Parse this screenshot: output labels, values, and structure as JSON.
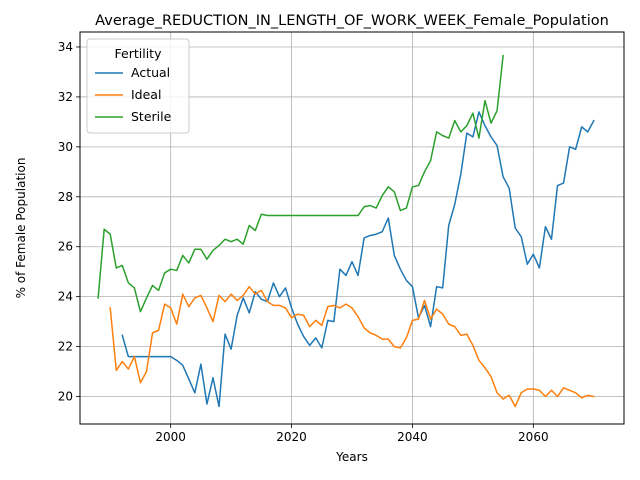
{
  "chart_data": {
    "type": "line",
    "title": "Average_REDUCTION_IN_LENGTH_OF_WORK_WEEK_Female_Population",
    "xlabel": "Years",
    "ylabel": "% of Female Population",
    "xlim": [
      1985,
      2075
    ],
    "ylim": [
      18.9,
      34.6
    ],
    "xticks": [
      2000,
      2020,
      2040,
      2060
    ],
    "yticks": [
      20,
      22,
      24,
      26,
      28,
      30,
      32,
      34
    ],
    "grid": true,
    "legend": {
      "title": "Fertility",
      "placement": "top-left"
    },
    "series": [
      {
        "name": "Actual",
        "color": "#1f77b4",
        "x": [
          1992,
          1993,
          1994,
          1995,
          1996,
          1997,
          1998,
          1999,
          2000,
          2001,
          2002,
          2003,
          2004,
          2005,
          2006,
          2007,
          2008,
          2009,
          2010,
          2011,
          2012,
          2013,
          2014,
          2015,
          2016,
          2017,
          2018,
          2019,
          2020,
          2021,
          2022,
          2023,
          2024,
          2025,
          2026,
          2027,
          2028,
          2029,
          2030,
          2031,
          2032,
          2033,
          2034,
          2035,
          2036,
          2037,
          2038,
          2039,
          2040,
          2041,
          2042,
          2043,
          2044,
          2045,
          2046,
          2047,
          2048,
          2049,
          2050,
          2051,
          2052,
          2053,
          2054,
          2055,
          2056,
          2057,
          2058,
          2059,
          2060,
          2061,
          2062,
          2063,
          2064,
          2065,
          2066,
          2067,
          2068,
          2069,
          2070
        ],
        "values": [
          22.45,
          21.6,
          21.6,
          21.6,
          21.6,
          21.6,
          21.6,
          21.6,
          21.6,
          21.45,
          21.25,
          20.7,
          20.15,
          21.3,
          19.7,
          20.75,
          19.6,
          22.5,
          21.9,
          23.25,
          23.95,
          23.35,
          24.2,
          23.9,
          23.8,
          24.55,
          24.0,
          24.35,
          23.55,
          22.9,
          22.4,
          22.05,
          22.35,
          21.95,
          23.05,
          23.0,
          25.1,
          24.85,
          25.4,
          24.85,
          26.35,
          26.45,
          26.5,
          26.6,
          27.15,
          25.65,
          25.1,
          24.65,
          24.4,
          23.15,
          23.65,
          22.8,
          24.4,
          24.35,
          26.85,
          27.7,
          28.9,
          30.55,
          30.4,
          31.4,
          30.85,
          30.4,
          30.05,
          28.8,
          28.35,
          26.75,
          26.4,
          25.3,
          25.7,
          25.15,
          26.8,
          26.3,
          28.45,
          28.55,
          30.0,
          29.9,
          30.8,
          30.6,
          31.05
        ]
      },
      {
        "name": "Ideal",
        "color": "#ff7f0e",
        "x": [
          1990,
          1991,
          1992,
          1993,
          1994,
          1995,
          1996,
          1997,
          1998,
          1999,
          2000,
          2001,
          2002,
          2003,
          2004,
          2005,
          2006,
          2007,
          2008,
          2009,
          2010,
          2011,
          2012,
          2013,
          2014,
          2015,
          2016,
          2017,
          2018,
          2019,
          2020,
          2021,
          2022,
          2023,
          2024,
          2025,
          2026,
          2027,
          2028,
          2029,
          2030,
          2031,
          2032,
          2033,
          2034,
          2035,
          2036,
          2037,
          2038,
          2039,
          2040,
          2041,
          2042,
          2043,
          2044,
          2045,
          2046,
          2047,
          2048,
          2049,
          2050,
          2051,
          2052,
          2053,
          2054,
          2055,
          2056,
          2057,
          2058,
          2059,
          2060,
          2061,
          2062,
          2063,
          2064,
          2065,
          2066,
          2067,
          2068,
          2069,
          2070
        ],
        "values": [
          23.55,
          21.05,
          21.4,
          21.1,
          21.6,
          20.55,
          21.0,
          22.55,
          22.65,
          23.7,
          23.55,
          22.9,
          24.1,
          23.6,
          23.95,
          24.05,
          23.55,
          23.0,
          24.05,
          23.8,
          24.1,
          23.85,
          24.05,
          24.4,
          24.1,
          24.25,
          23.8,
          23.65,
          23.65,
          23.55,
          23.15,
          23.3,
          23.25,
          22.8,
          23.05,
          22.85,
          23.6,
          23.65,
          23.55,
          23.7,
          23.55,
          23.2,
          22.75,
          22.55,
          22.45,
          22.3,
          22.3,
          22.0,
          21.95,
          22.35,
          23.05,
          23.1,
          23.85,
          23.1,
          23.5,
          23.3,
          22.9,
          22.8,
          22.45,
          22.5,
          22.05,
          21.45,
          21.15,
          20.8,
          20.15,
          19.9,
          20.05,
          19.6,
          20.15,
          20.3,
          20.3,
          20.25,
          20.0,
          20.25,
          20.0,
          20.35,
          20.25,
          20.15,
          19.95,
          20.05,
          20.0
        ]
      },
      {
        "name": "Sterile",
        "color": "#2ca02c",
        "x": [
          1988,
          1989,
          1990,
          1991,
          1992,
          1993,
          1994,
          1995,
          1996,
          1997,
          1998,
          1999,
          2000,
          2001,
          2002,
          2003,
          2004,
          2005,
          2006,
          2007,
          2008,
          2009,
          2010,
          2011,
          2012,
          2013,
          2014,
          2015,
          2016,
          2017,
          2018,
          2019,
          2020,
          2021,
          2022,
          2023,
          2024,
          2025,
          2026,
          2027,
          2028,
          2029,
          2030,
          2031,
          2032,
          2033,
          2034,
          2035,
          2036,
          2037,
          2038,
          2039,
          2040,
          2041,
          2042,
          2043,
          2044,
          2045,
          2046,
          2047,
          2048,
          2049,
          2050,
          2051,
          2052,
          2053,
          2054,
          2055
        ],
        "values": [
          23.95,
          26.7,
          26.5,
          25.15,
          25.25,
          24.55,
          24.35,
          23.4,
          23.95,
          24.45,
          24.25,
          24.95,
          25.1,
          25.05,
          25.65,
          25.35,
          25.9,
          25.9,
          25.5,
          25.85,
          26.05,
          26.3,
          26.2,
          26.3,
          26.1,
          26.85,
          26.65,
          27.3,
          27.25,
          27.25,
          27.25,
          27.25,
          27.25,
          27.25,
          27.25,
          27.25,
          27.25,
          27.25,
          27.25,
          27.25,
          27.25,
          27.25,
          27.25,
          27.25,
          27.6,
          27.65,
          27.55,
          28.05,
          28.4,
          28.2,
          27.45,
          27.55,
          28.4,
          28.45,
          29.0,
          29.45,
          30.6,
          30.45,
          30.35,
          31.05,
          30.6,
          30.85,
          31.35,
          30.35,
          31.85,
          30.95,
          31.45,
          33.65
        ]
      }
    ]
  }
}
